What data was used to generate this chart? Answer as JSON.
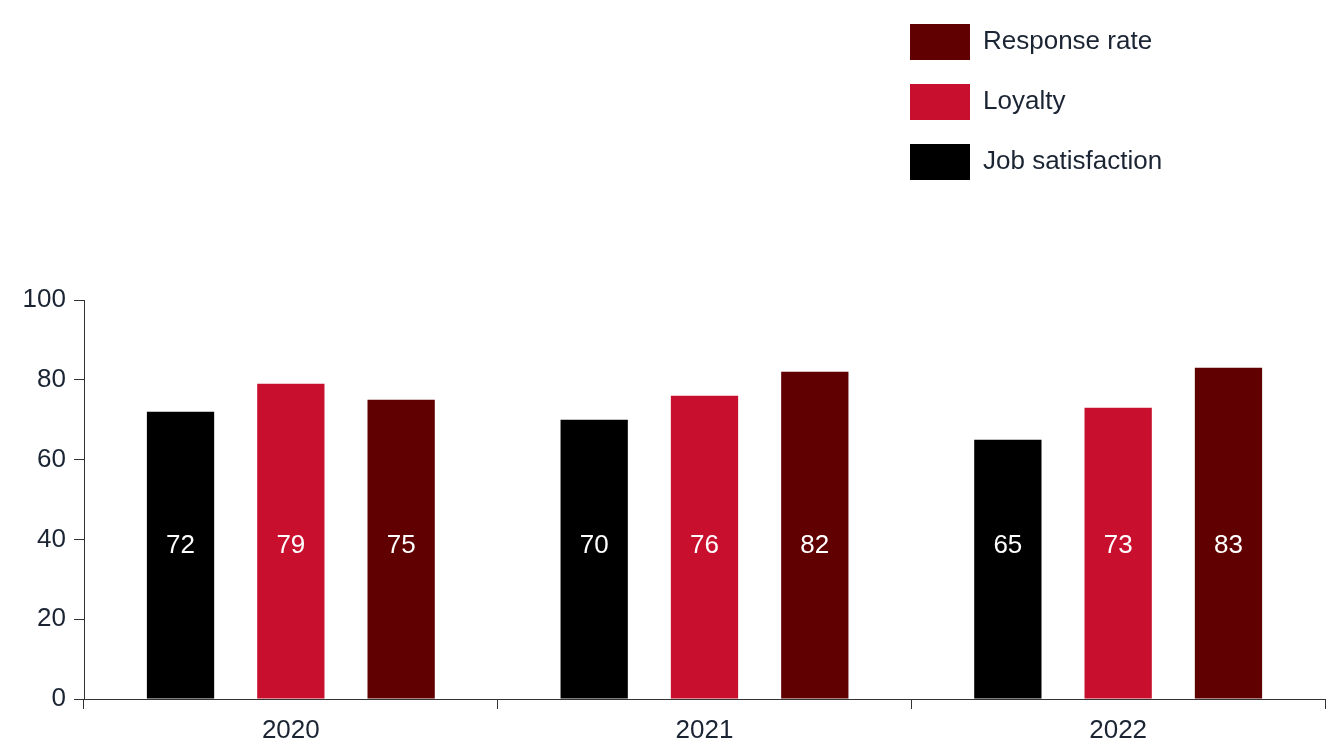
{
  "chart_data": {
    "type": "bar",
    "categories": [
      "2020",
      "2021",
      "2022"
    ],
    "series": [
      {
        "name": "Job satisfaction",
        "color": "#000000",
        "values": [
          72,
          70,
          65
        ]
      },
      {
        "name": "Loyalty",
        "color": "#c8102e",
        "values": [
          79,
          76,
          73
        ]
      },
      {
        "name": "Response rate",
        "color": "#600000",
        "values": [
          75,
          82,
          83
        ]
      }
    ],
    "ylim": [
      0,
      100
    ],
    "yticks": [
      0,
      20,
      40,
      60,
      80,
      100
    ],
    "data_labels": true,
    "legend": "top right",
    "grid": false
  }
}
